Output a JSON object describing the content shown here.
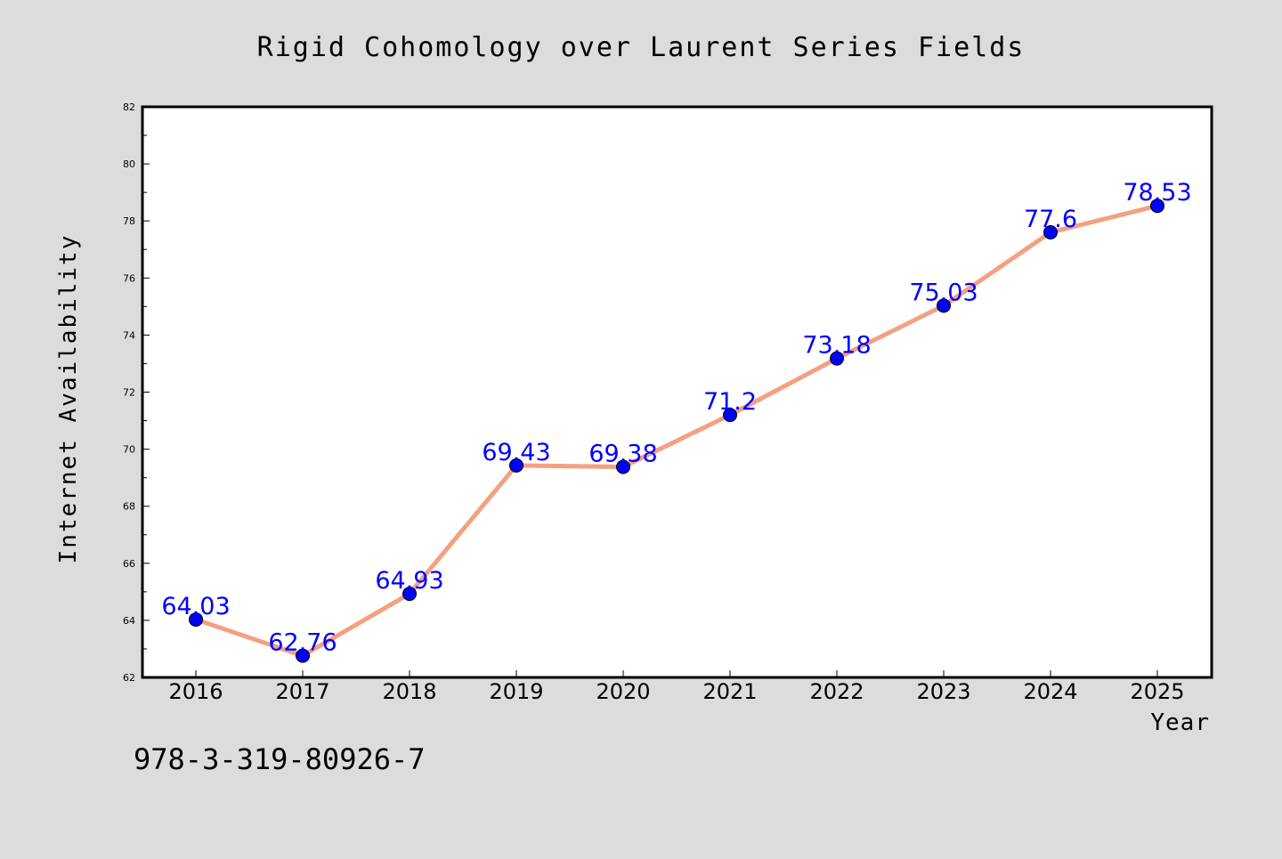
{
  "chart_data": {
    "type": "line",
    "title": "Rigid Cohomology over Laurent Series Fields",
    "xlabel": "Year",
    "ylabel": "Internet Availability",
    "x": [
      "2016",
      "2017",
      "2018",
      "2019",
      "2020",
      "2021",
      "2022",
      "2023",
      "2024",
      "2025"
    ],
    "series": [
      {
        "values": [
          64.03,
          62.76,
          64.93,
          69.43,
          69.38,
          71.2,
          73.18,
          75.03,
          77.6,
          78.53
        ],
        "labels": [
          "64.03",
          "62.76",
          "64.93",
          "69.43",
          "69.38",
          "71.2",
          "73.18",
          "75.03",
          "77.6",
          "78.53"
        ]
      }
    ],
    "ylim": [
      62,
      82
    ],
    "yticks": [
      "62",
      "64",
      "66",
      "68",
      "70",
      "72",
      "74",
      "76",
      "78",
      "80",
      "82"
    ],
    "grid": false,
    "legend": "none",
    "line_color": "#f4a081",
    "marker_color": "#0000ff",
    "label_color": "#0000ff"
  },
  "annotation": {
    "isbn": "978-3-319-80926-7"
  },
  "colors": {
    "background": "#dcdcdc",
    "plot_background": "#ffffff",
    "axis": "#000000"
  }
}
